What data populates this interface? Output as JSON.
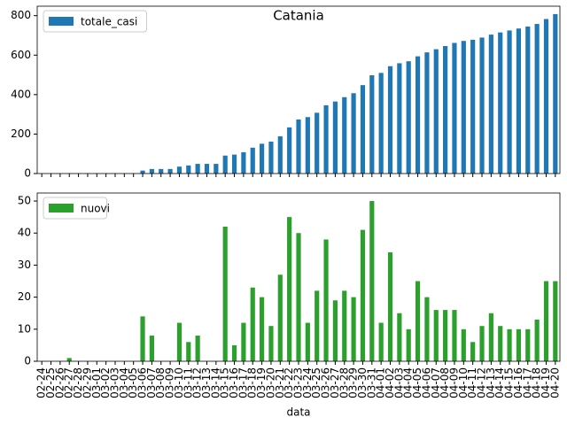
{
  "chart_data": [
    {
      "type": "bar",
      "title": "Catania",
      "series": [
        {
          "name": "totale_casi",
          "color": "#1f77b4",
          "values": [
            0,
            0,
            0,
            1,
            1,
            1,
            1,
            1,
            1,
            1,
            1,
            15,
            23,
            23,
            23,
            35,
            41,
            49,
            49,
            49,
            91,
            96,
            108,
            131,
            151,
            162,
            189,
            234,
            274,
            286,
            308,
            346,
            365,
            387,
            407,
            448,
            498,
            510,
            544,
            559,
            569,
            594,
            614,
            630,
            646,
            662,
            672,
            678,
            689,
            704,
            715,
            725,
            735,
            745,
            758,
            783,
            808
          ]
        }
      ],
      "ylim": [
        0,
        848
      ],
      "yticks": [
        0,
        200,
        400,
        600,
        800
      ],
      "legend": "upper left"
    },
    {
      "type": "bar",
      "xlabel": "data",
      "categories": [
        "02-24",
        "02-25",
        "02-26",
        "02-27",
        "02-28",
        "02-29",
        "03-01",
        "03-02",
        "03-03",
        "03-04",
        "03-05",
        "03-06",
        "03-07",
        "03-08",
        "03-09",
        "03-10",
        "03-11",
        "03-12",
        "03-13",
        "03-14",
        "03-15",
        "03-16",
        "03-17",
        "03-18",
        "03-19",
        "03-20",
        "03-21",
        "03-22",
        "03-23",
        "03-24",
        "03-25",
        "03-26",
        "03-27",
        "03-28",
        "03-29",
        "03-30",
        "03-31",
        "04-01",
        "04-02",
        "04-03",
        "04-04",
        "04-05",
        "04-06",
        "04-07",
        "04-08",
        "04-09",
        "04-10",
        "04-11",
        "04-12",
        "04-13",
        "04-14",
        "04-15",
        "04-16",
        "04-17",
        "04-18",
        "04-19",
        "04-20"
      ],
      "series": [
        {
          "name": "nuovi",
          "color": "#2ca02c",
          "values": [
            0,
            0,
            0,
            1,
            0,
            0,
            0,
            0,
            0,
            0,
            0,
            14,
            8,
            0,
            0,
            12,
            6,
            8,
            0,
            0,
            42,
            5,
            12,
            23,
            20,
            11,
            27,
            45,
            40,
            12,
            22,
            38,
            19,
            22,
            20,
            41,
            50,
            12,
            34,
            15,
            10,
            25,
            20,
            16,
            16,
            16,
            10,
            6,
            11,
            15,
            11,
            10,
            10,
            10,
            13,
            25,
            25
          ]
        }
      ],
      "ylim": [
        0,
        52.5
      ],
      "yticks": [
        0,
        10,
        20,
        30,
        40,
        50
      ],
      "legend": "upper left"
    }
  ]
}
